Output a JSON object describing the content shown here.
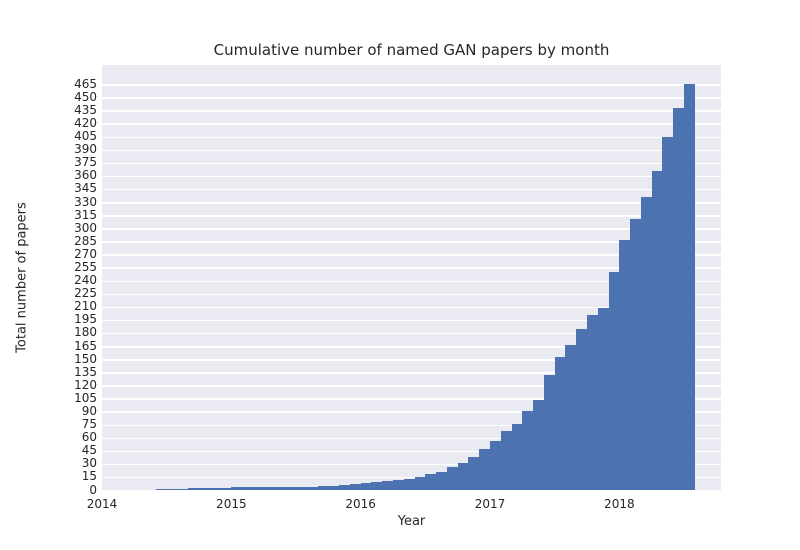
{
  "chart_data": {
    "type": "bar",
    "title": "Cumulative number of named GAN papers by month",
    "xlabel": "Year",
    "ylabel": "Total number of papers",
    "x_tick_labels": [
      "2014",
      "2015",
      "2016",
      "2017",
      "2018"
    ],
    "x_tick_month_offsets": [
      0,
      12,
      24,
      36,
      48
    ],
    "y_ticks": [
      0,
      15,
      30,
      45,
      60,
      75,
      90,
      105,
      120,
      135,
      150,
      165,
      180,
      195,
      210,
      225,
      240,
      255,
      270,
      285,
      300,
      315,
      330,
      345,
      360,
      375,
      390,
      405,
      420,
      435,
      450,
      465
    ],
    "ylim": [
      0,
      487
    ],
    "xlim_months_from_2014_01": [
      0,
      57.4
    ],
    "grid": true,
    "legend": "none",
    "colors": {
      "bar": "#4c72b0",
      "plot_background": "#eaeaf2",
      "gridline": "#ffffff",
      "figure_background": "#ffffff",
      "text": "#262626"
    },
    "series": [
      {
        "name": "Cumulative number of named GAN papers",
        "months": [
          "2014-06",
          "2014-07",
          "2014-08",
          "2014-09",
          "2014-10",
          "2014-11",
          "2014-12",
          "2015-01",
          "2015-02",
          "2015-03",
          "2015-04",
          "2015-05",
          "2015-06",
          "2015-07",
          "2015-08",
          "2015-09",
          "2015-10",
          "2015-11",
          "2015-12",
          "2016-01",
          "2016-02",
          "2016-03",
          "2016-04",
          "2016-05",
          "2016-06",
          "2016-07",
          "2016-08",
          "2016-09",
          "2016-10",
          "2016-11",
          "2016-12",
          "2017-01",
          "2017-02",
          "2017-03",
          "2017-04",
          "2017-05",
          "2017-06",
          "2017-07",
          "2017-08",
          "2017-09",
          "2017-10",
          "2017-11",
          "2017-12",
          "2018-01",
          "2018-02",
          "2018-03",
          "2018-04",
          "2018-05",
          "2018-06",
          "2018-07"
        ],
        "values": [
          1,
          1,
          1,
          2,
          2,
          2,
          2,
          3,
          3,
          3,
          3,
          3,
          4,
          4,
          4,
          5,
          5,
          6,
          7,
          8,
          9,
          10,
          11,
          13,
          15,
          18,
          21,
          26,
          31,
          38,
          47,
          56,
          68,
          76,
          90,
          103,
          132,
          152,
          166,
          185,
          200,
          209,
          250,
          286,
          311,
          336,
          366,
          405,
          438,
          465
        ]
      }
    ]
  }
}
